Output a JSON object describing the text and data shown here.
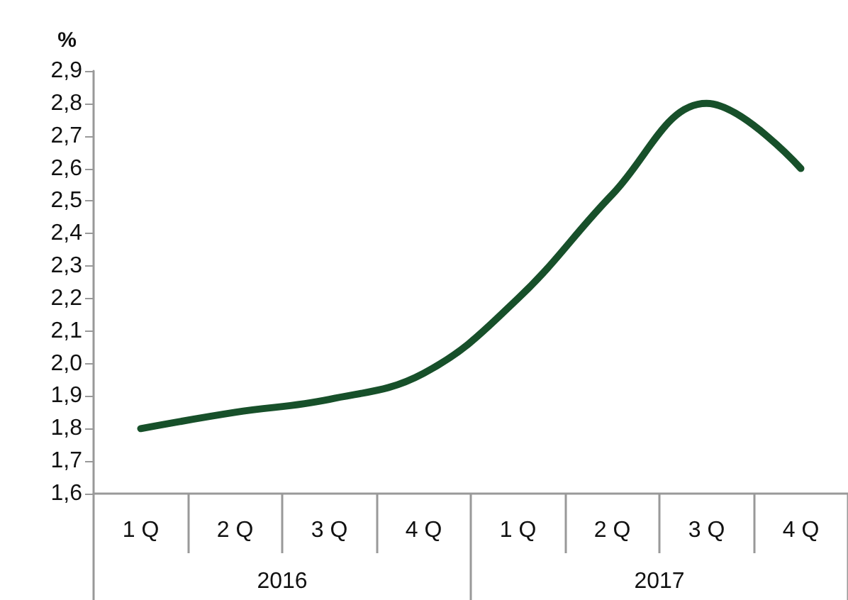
{
  "chart_data": {
    "type": "line",
    "ylabel": "%",
    "categories": [
      "1 Q",
      "2 Q",
      "3 Q",
      "4 Q",
      "1 Q",
      "2 Q",
      "3 Q",
      "4 Q"
    ],
    "series": [
      {
        "color": "#17502a",
        "values": [
          1.8,
          1.85,
          1.89,
          1.97,
          2.2,
          2.52,
          2.8,
          2.6
        ]
      }
    ],
    "annotations": [
      "2016",
      "2017"
    ],
    "ylim": [
      1.6,
      2.9
    ],
    "yticks": [
      {
        "value": 1.6,
        "label": "1,6"
      },
      {
        "value": 1.7,
        "label": "1,7"
      },
      {
        "value": 1.8,
        "label": "1,8"
      },
      {
        "value": 1.9,
        "label": "1,9"
      },
      {
        "value": 2.0,
        "label": "2,0"
      },
      {
        "value": 2.1,
        "label": "2,1"
      },
      {
        "value": 2.2,
        "label": "2,2"
      },
      {
        "value": 2.3,
        "label": "2,3"
      },
      {
        "value": 2.4,
        "label": "2,4"
      },
      {
        "value": 2.5,
        "label": "2,5"
      },
      {
        "value": 2.6,
        "label": "2,6"
      },
      {
        "value": 2.7,
        "label": "2,7"
      },
      {
        "value": 2.8,
        "label": "2,8"
      },
      {
        "value": 2.9,
        "label": "2,9"
      }
    ],
    "grid": false,
    "marker": "none",
    "line_style": "solid"
  }
}
